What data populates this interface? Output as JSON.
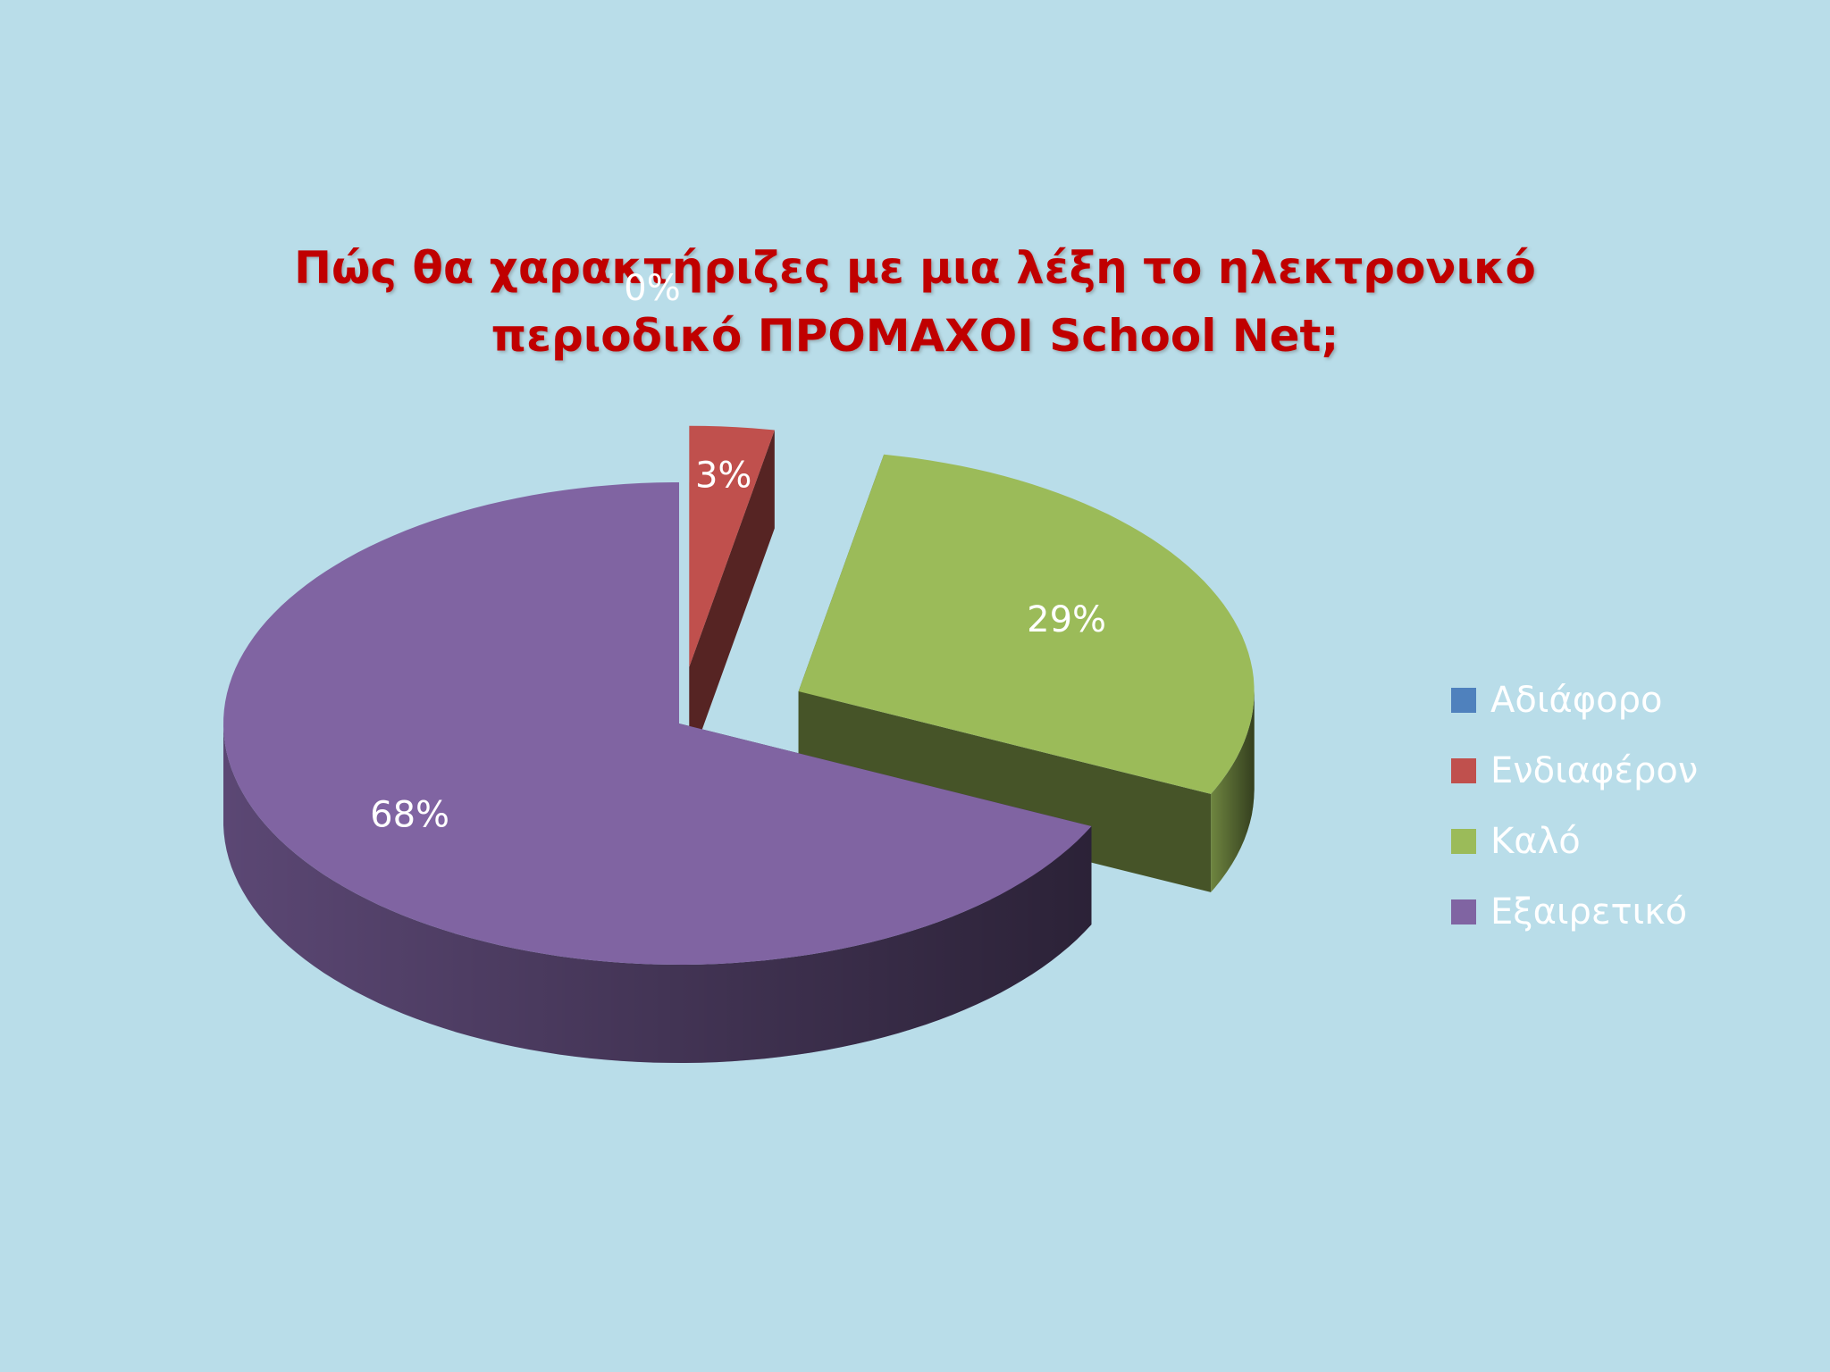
{
  "chart_data": {
    "type": "pie",
    "title": [
      "Πώς θα χαρακτήριζες με μια λέξη  το ηλεκτρονικό",
      "περιοδικό ΠΡΟΜΑΧΟΙ School Net;"
    ],
    "categories": [
      "Αδιάφορο",
      "Ενδιαφέρον",
      "Καλό",
      "Εξαιρετικό"
    ],
    "values": [
      0,
      3,
      29,
      68
    ],
    "data_labels": [
      "0%",
      "3%",
      "29%",
      "68%"
    ],
    "colors": [
      "#4f81bd",
      "#c0504d",
      "#9bbb59",
      "#8064a2"
    ],
    "style": "3d-exploded",
    "legend_position": "right"
  }
}
